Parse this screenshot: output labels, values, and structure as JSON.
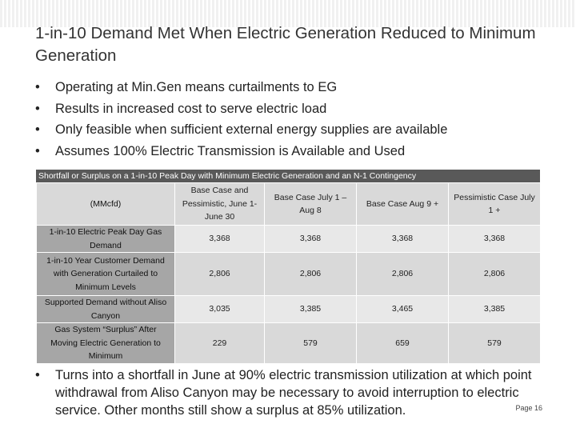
{
  "header": {
    "title": "1-in-10 Demand Met When Electric Generation Reduced to Minimum Generation"
  },
  "bullets": [
    "Operating at Min.Gen means curtailments to EG",
    "Results in increased cost to serve electric load",
    "Only feasible when sufficient external energy supplies are available",
    "Assumes 100% Electric Transmission is Available and Used"
  ],
  "table": {
    "title": "Shortfall or Surplus on a 1-in-10 Peak Day with Minimum Electric Generation and an N-1 Contingency",
    "columns": [
      "(MMcfd)",
      "Base Case and Pessimistic, June 1-June 30",
      "Base Case July 1 – Aug 8",
      "Base Case Aug 9 +",
      "Pessimistic Case July 1 +"
    ],
    "rows": [
      [
        "1-in-10 Electric Peak Day Gas Demand",
        "3,368",
        "3,368",
        "3,368",
        "3,368"
      ],
      [
        "1-in-10 Year Customer Demand with Generation Curtailed to Minimum Levels",
        "2,806",
        "2,806",
        "2,806",
        "2,806"
      ],
      [
        "Supported Demand without Aliso Canyon",
        "3,035",
        "3,385",
        "3,465",
        "3,385"
      ],
      [
        "Gas System “Surplus” After Moving Electric Generation to Minimum",
        "229",
        "579",
        "659",
        "579"
      ]
    ]
  },
  "final_bullet": "Turns into a shortfall in June at 90% electric transmission utilization at which point withdrawal from Aliso Canyon may be necessary to avoid interruption to electric service. Other months still show a surplus at 85% utilization.",
  "page": "Page 16"
}
